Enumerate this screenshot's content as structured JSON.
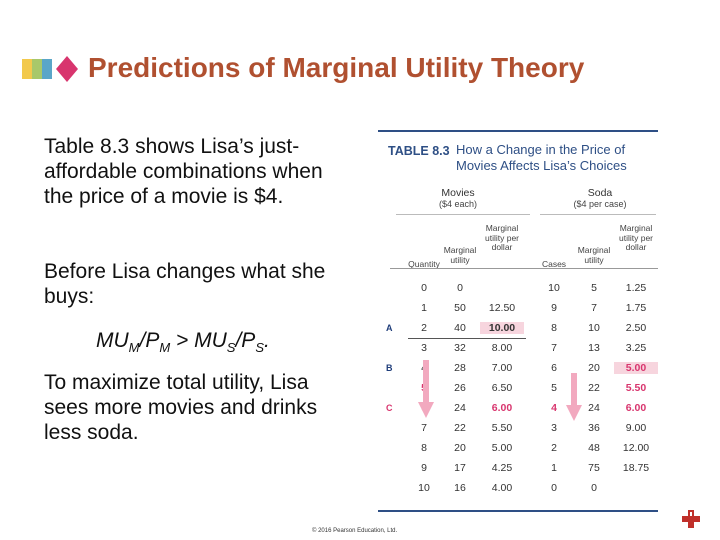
{
  "title": "Predictions of Marginal Utility Theory",
  "paragraph1": "Table 8.3 shows Lisa’s just-affordable combinations when the price of a movie is $4.",
  "paragraph2": "Before Lisa changes what she buys:",
  "formula": {
    "mu_m": "MU",
    "sub_m": "M",
    "p_m": "/P",
    "sub_pm": "M",
    "gt": " > MU",
    "sub_s": "S",
    "p_s": "/P",
    "sub_ps": "S",
    "end": "."
  },
  "paragraph3": "To maximize total utility, Lisa sees more movies and drinks less soda.",
  "table": {
    "number": "TABLE 8.3",
    "caption": "How a Change in the Price of Movies Affects Lisa’s Choices",
    "movies_group": "Movies",
    "movies_price": "($4 each)",
    "soda_group": "Soda",
    "soda_price": "($4 per case)",
    "headers": [
      "Quantity",
      "Marginal utility",
      "Marginal utility per dollar",
      "Cases",
      "Marginal utility",
      "Marginal utility per dollar"
    ],
    "row_labels": {
      "a": "A",
      "b": "B",
      "c": "C"
    },
    "rows": [
      [
        "0",
        "0",
        "",
        "10",
        "5",
        "1.25"
      ],
      [
        "1",
        "50",
        "12.50",
        "9",
        "7",
        "1.75"
      ],
      [
        "2",
        "40",
        "10.00",
        "8",
        "10",
        "2.50"
      ],
      [
        "3",
        "32",
        "8.00",
        "7",
        "13",
        "3.25"
      ],
      [
        "4",
        "28",
        "7.00",
        "6",
        "20",
        "5.00"
      ],
      [
        "5",
        "26",
        "6.50",
        "5",
        "22",
        "5.50"
      ],
      [
        "6",
        "24",
        "6.00",
        "4",
        "24",
        "6.00"
      ],
      [
        "7",
        "22",
        "5.50",
        "3",
        "36",
        "9.00"
      ],
      [
        "8",
        "20",
        "5.00",
        "2",
        "48",
        "12.00"
      ],
      [
        "9",
        "17",
        "4.25",
        "1",
        "75",
        "18.75"
      ],
      [
        "10",
        "16",
        "4.00",
        "0",
        "0",
        ""
      ]
    ]
  },
  "copyright": "© 2016 Pearson Education, Ltd.",
  "colors": {
    "title": "#b05030",
    "table_blue": "#2e4f85",
    "highlight": "#d8356e",
    "box": "#f7d5de"
  }
}
